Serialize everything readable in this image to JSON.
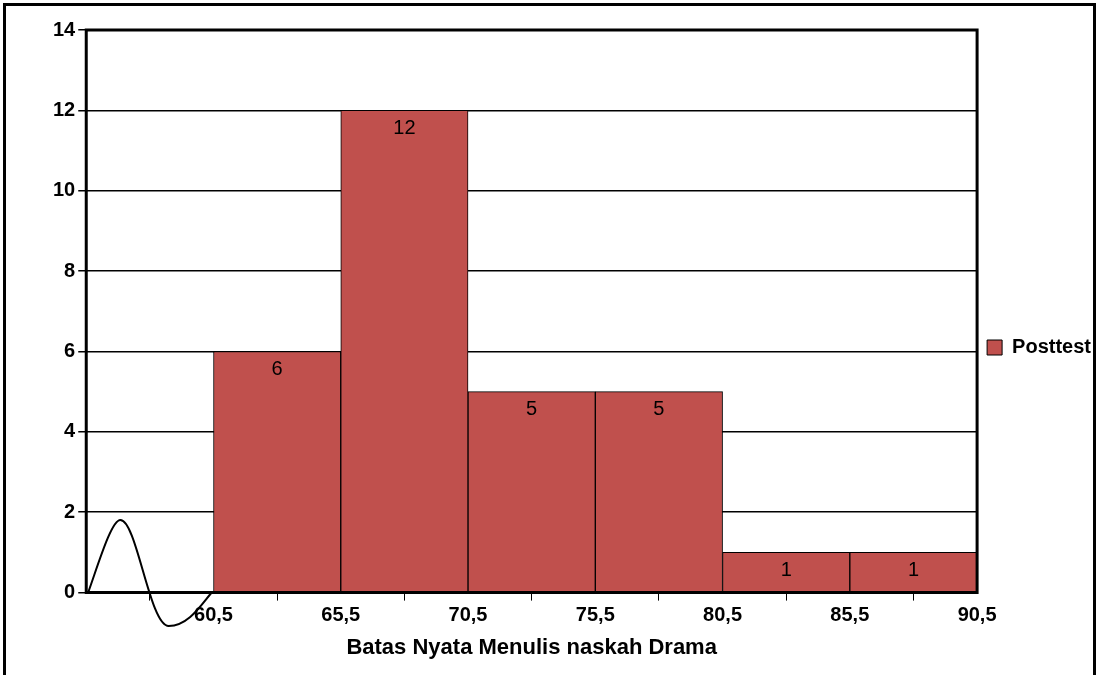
{
  "chart_data": {
    "type": "histogram",
    "xlabel": "Batas Nyata Menulis naskah Drama",
    "bins": [
      60.5,
      65.5,
      70.5,
      75.5,
      80.5,
      85.5,
      90.5
    ],
    "series": [
      {
        "name": "Posttest",
        "color": "#c0504d",
        "values": [
          6,
          12,
          5,
          5,
          1,
          1
        ]
      }
    ],
    "xlim": [
      55.5,
      90.5
    ],
    "xticks": [
      {
        "value": 55.5,
        "label": null
      },
      {
        "value": 60.5,
        "label": "60,5"
      },
      {
        "value": 65.5,
        "label": "65,5"
      },
      {
        "value": 70.5,
        "label": "70,5"
      },
      {
        "value": 75.5,
        "label": "75,5"
      },
      {
        "value": 80.5,
        "label": "80,5"
      },
      {
        "value": 85.5,
        "label": "85,5"
      },
      {
        "value": 90.5,
        "label": "90,5"
      }
    ],
    "ylim": [
      0,
      14
    ],
    "yticks": [
      0,
      2,
      4,
      6,
      8,
      10,
      12,
      14
    ],
    "grid": "y",
    "legend": "right",
    "data_labels": true
  }
}
